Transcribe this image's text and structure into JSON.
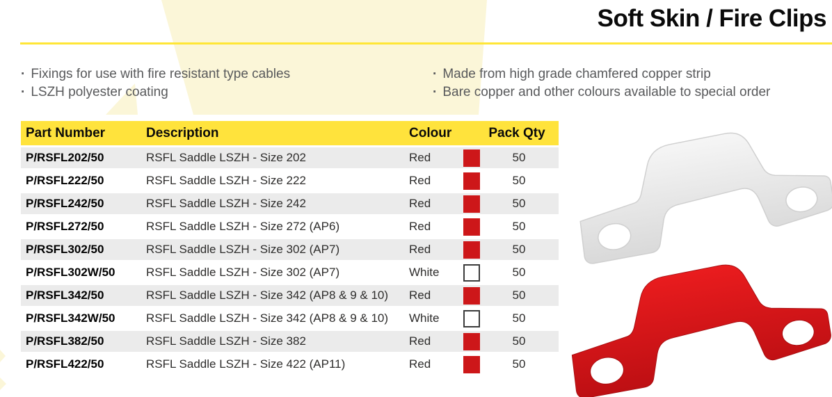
{
  "page": {
    "title": "Soft Skin / Fire Clips"
  },
  "features": {
    "bullet": "·",
    "left": [
      "Fixings for use with fire resistant type cables",
      "LSZH polyester coating"
    ],
    "right": [
      "Made from high grade chamfered copper strip",
      "Bare copper and other colours available to special order"
    ]
  },
  "table": {
    "headers": [
      "Part Number",
      "Description",
      "Colour",
      "Pack Qty"
    ],
    "rows": [
      {
        "part": "P/RSFL202/50",
        "desc": "RSFL Saddle LSZH - Size 202",
        "colour": "Red",
        "swatch": "#cd1719",
        "qty": "50"
      },
      {
        "part": "P/RSFL222/50",
        "desc": "RSFL Saddle LSZH - Size 222",
        "colour": "Red",
        "swatch": "#cd1719",
        "qty": "50"
      },
      {
        "part": "P/RSFL242/50",
        "desc": "RSFL Saddle LSZH - Size 242",
        "colour": "Red",
        "swatch": "#cd1719",
        "qty": "50"
      },
      {
        "part": "P/RSFL272/50",
        "desc": "RSFL Saddle LSZH - Size 272 (AP6)",
        "colour": "Red",
        "swatch": "#cd1719",
        "qty": "50"
      },
      {
        "part": "P/RSFL302/50",
        "desc": "RSFL Saddle LSZH - Size 302 (AP7)",
        "colour": "Red",
        "swatch": "#cd1719",
        "qty": "50"
      },
      {
        "part": "P/RSFL302W/50",
        "desc": "RSFL Saddle LSZH - Size 302 (AP7)",
        "colour": "White",
        "swatch": "#ffffff",
        "qty": "50"
      },
      {
        "part": "P/RSFL342/50",
        "desc": "RSFL Saddle LSZH - Size 342 (AP8 & 9 & 10)",
        "colour": "Red",
        "swatch": "#cd1719",
        "qty": "50"
      },
      {
        "part": "P/RSFL342W/50",
        "desc": "RSFL Saddle LSZH - Size 342 (AP8 & 9 & 10)",
        "colour": "White",
        "swatch": "#ffffff",
        "qty": "50"
      },
      {
        "part": "P/RSFL382/50",
        "desc": "RSFL Saddle LSZH - Size 382",
        "colour": "Red",
        "swatch": "#cd1719",
        "qty": "50"
      },
      {
        "part": "P/RSFL422/50",
        "desc": "RSFL Saddle LSZH - Size 422 (AP11)",
        "colour": "Red",
        "swatch": "#cd1719",
        "qty": "50"
      }
    ]
  },
  "images": {
    "white_clip_alt": "white-saddle-fire-clip-photo",
    "red_clip_alt": "red-saddle-fire-clip-photo"
  },
  "colors": {
    "accent_yellow": "#ffe33c",
    "divider_yellow": "#ffe636",
    "watermark_pale_yellow": "#fbf6d8",
    "swatch_red": "#cd1719",
    "swatch_white": "#ffffff",
    "row_gray": "#ebebeb",
    "text_gray": "#58595b"
  }
}
